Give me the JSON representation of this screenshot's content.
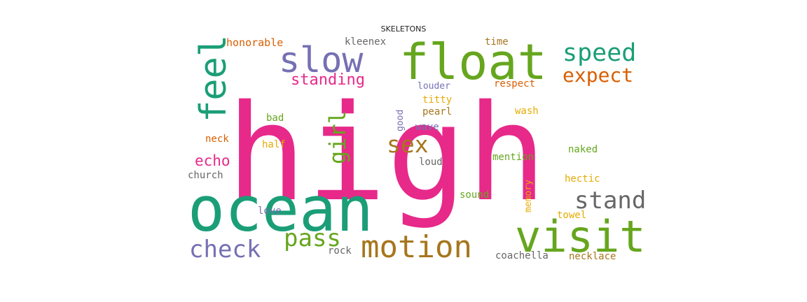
{
  "title": "SKELETONS",
  "palette": {
    "pink": "#e7298a",
    "teal": "#1b9e77",
    "green": "#66a61e",
    "purple": "#7570b3",
    "orange": "#d95f02",
    "gold": "#e6ab02",
    "brown": "#a6761d",
    "gray": "#666666"
  },
  "words": [
    {
      "text": "high",
      "color": "#e7298a",
      "vertical": false
    },
    {
      "text": "ocean",
      "color": "#1b9e77",
      "vertical": false
    },
    {
      "text": "float",
      "color": "#66a61e",
      "vertical": false
    },
    {
      "text": "visit",
      "color": "#66a61e",
      "vertical": false
    },
    {
      "text": "slow",
      "color": "#7570b3",
      "vertical": false
    },
    {
      "text": "feel",
      "color": "#1b9e77",
      "vertical": true
    },
    {
      "text": "motion",
      "color": "#a6761d",
      "vertical": false
    },
    {
      "text": "speed",
      "color": "#1b9e77",
      "vertical": false
    },
    {
      "text": "expect",
      "color": "#d95f02",
      "vertical": false
    },
    {
      "text": "stand",
      "color": "#666666",
      "vertical": false
    },
    {
      "text": "check",
      "color": "#7570b3",
      "vertical": false
    },
    {
      "text": "sex",
      "color": "#a6761d",
      "vertical": false
    },
    {
      "text": "pass",
      "color": "#66a61e",
      "vertical": false
    },
    {
      "text": "girl",
      "color": "#66a61e",
      "vertical": true
    },
    {
      "text": "standing",
      "color": "#e7298a",
      "vertical": false
    },
    {
      "text": "echo",
      "color": "#e7298a",
      "vertical": false
    },
    {
      "text": "honorable",
      "color": "#d95f02",
      "vertical": false
    },
    {
      "text": "kleenex",
      "color": "#666666",
      "vertical": false
    },
    {
      "text": "time",
      "color": "#a6761d",
      "vertical": false
    },
    {
      "text": "louder",
      "color": "#7570b3",
      "vertical": false
    },
    {
      "text": "respect",
      "color": "#d95f02",
      "vertical": false
    },
    {
      "text": "titty",
      "color": "#e6ab02",
      "vertical": false
    },
    {
      "text": "good",
      "color": "#7570b3",
      "vertical": true
    },
    {
      "text": "pearl",
      "color": "#a6761d",
      "vertical": false
    },
    {
      "text": "wash",
      "color": "#e6ab02",
      "vertical": false
    },
    {
      "text": "bad",
      "color": "#66a61e",
      "vertical": false
    },
    {
      "text": "wave",
      "color": "#7570b3",
      "vertical": false
    },
    {
      "text": "neck",
      "color": "#d95f02",
      "vertical": false
    },
    {
      "text": "half",
      "color": "#e6ab02",
      "vertical": false
    },
    {
      "text": "naked",
      "color": "#66a61e",
      "vertical": false
    },
    {
      "text": "mention",
      "color": "#66a61e",
      "vertical": false
    },
    {
      "text": "loud",
      "color": "#666666",
      "vertical": false
    },
    {
      "text": "church",
      "color": "#666666",
      "vertical": false
    },
    {
      "text": "memory",
      "color": "#e6ab02",
      "vertical": true
    },
    {
      "text": "hectic",
      "color": "#e6ab02",
      "vertical": false
    },
    {
      "text": "sound",
      "color": "#66a61e",
      "vertical": false
    },
    {
      "text": "towel",
      "color": "#e6ab02",
      "vertical": false
    },
    {
      "text": "love",
      "color": "#7570b3",
      "vertical": false
    },
    {
      "text": "rock",
      "color": "#666666",
      "vertical": false
    },
    {
      "text": "coachella",
      "color": "#666666",
      "vertical": false
    },
    {
      "text": "necklace",
      "color": "#a6761d",
      "vertical": false
    }
  ]
}
